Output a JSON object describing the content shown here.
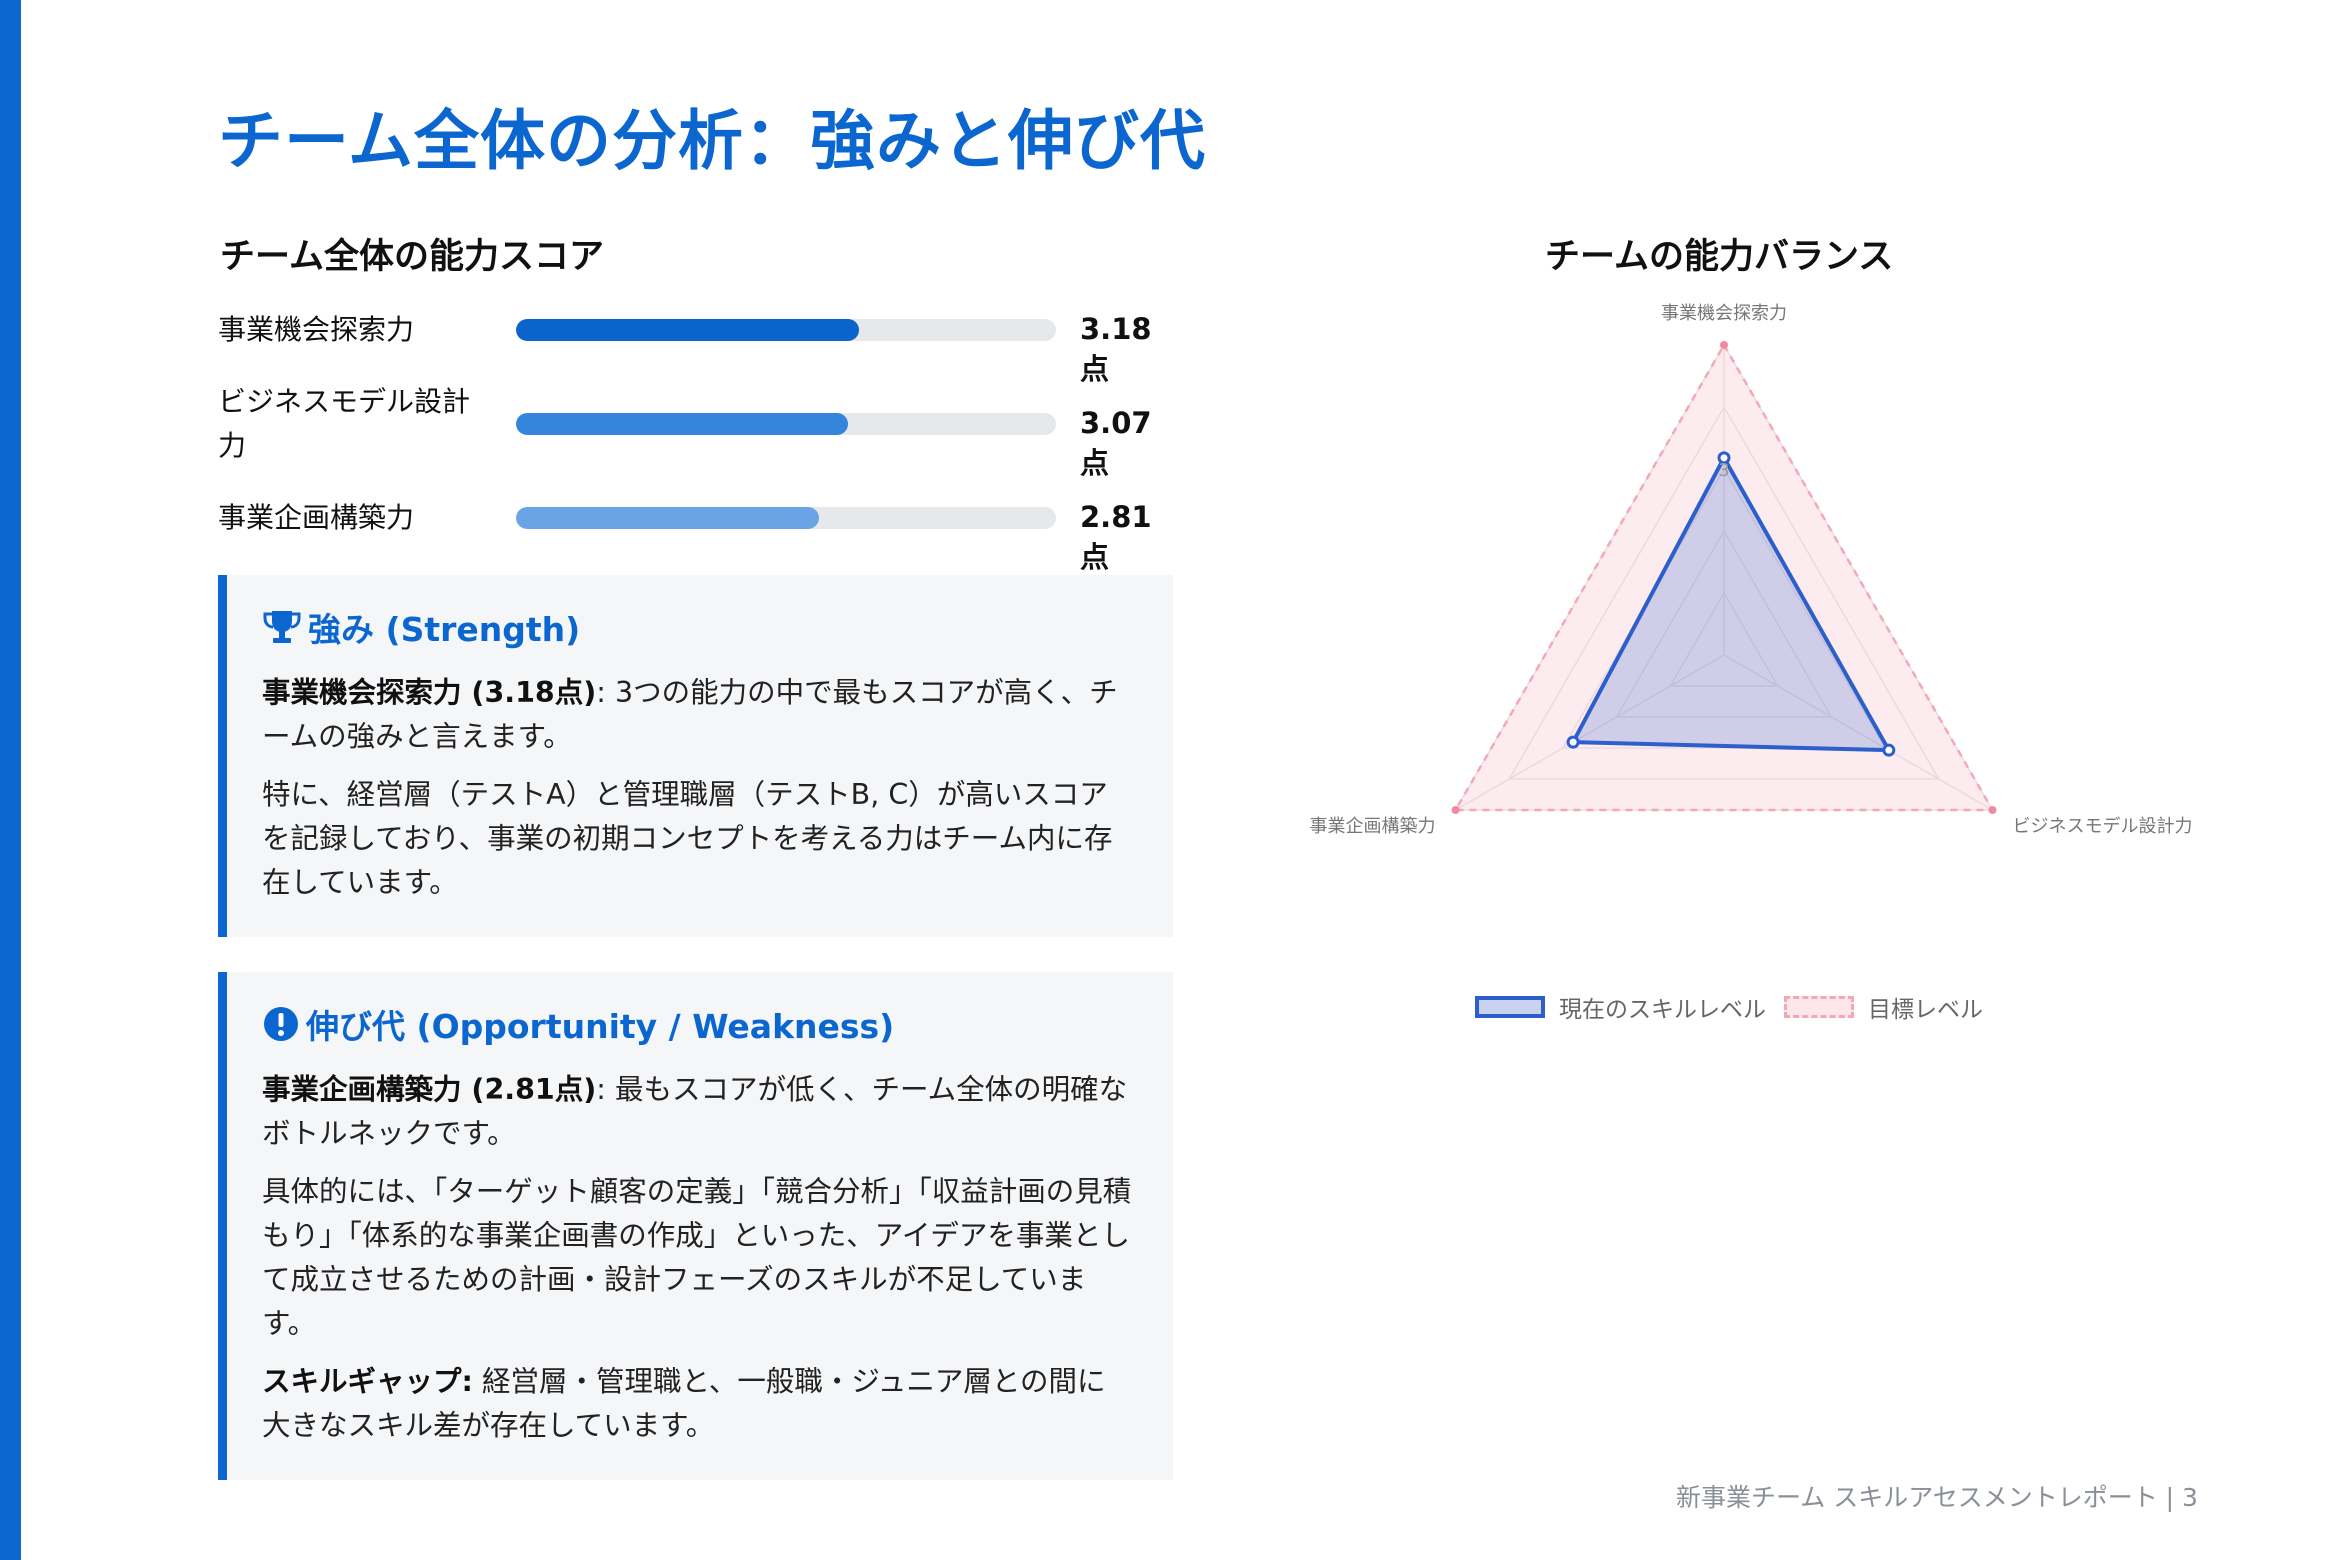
{
  "page_title": "チーム全体の分析：強みと伸び代",
  "scores_section": {
    "title": "チーム全体の能力スコア",
    "items": [
      {
        "label": "事業機会探索力",
        "value_text": "3.18点",
        "score": 3.18,
        "fill_fraction": 0.636,
        "color": "#0b63cc"
      },
      {
        "label": "ビジネスモデル設計力",
        "value_text": "3.07点",
        "score": 3.07,
        "fill_fraction": 0.614,
        "color": "#3585dc"
      },
      {
        "label": "事業企画構築力",
        "value_text": "2.81点",
        "score": 2.81,
        "fill_fraction": 0.562,
        "color": "#6aa4e6"
      }
    ]
  },
  "strength_card": {
    "icon": "trophy-icon",
    "title": "強み (Strength)",
    "p1_bold": "事業機会探索力 (3.18点)",
    "p1_text": ": 3つの能力の中で最もスコアが高く、チームの強みと言えます。",
    "p2_text": "特に、経営層（テストA）と管理職層（テストB, C）が高いスコアを記録しており、事業の初期コンセプトを考える力はチーム内に存在しています。"
  },
  "weakness_card": {
    "icon": "exclamation-circle-icon",
    "title": "伸び代 (Opportunity / Weakness)",
    "p1_bold": "事業企画構築力 (2.81点)",
    "p1_text": ": 最もスコアが低く、チーム全体の明確なボトルネックです。",
    "p2_text": "具体的には、「ターゲット顧客の定義」「競合分析」「収益計画の見積もり」「体系的な事業企画書の作成」といった、アイデアを事業として成立させるための計画・設計フェーズのスキルが不足しています。",
    "p3_bold": "スキルギャップ:",
    "p3_text": " 経営層・管理職と、一般職・ジュニア層との間に大きなスキル差が存在しています。"
  },
  "radar_section": {
    "title": "チームの能力バランス"
  },
  "chart_data": {
    "type": "radar",
    "axes": [
      "事業機会探索力",
      "ビジネスモデル設計力",
      "事業企画構築力"
    ],
    "scale_max": 5,
    "tick_labels": [
      "3"
    ],
    "series": [
      {
        "name": "現在のスキルレベル",
        "values": [
          3.18,
          3.07,
          2.81
        ],
        "color": "#2c5fcb"
      },
      {
        "name": "目標レベル",
        "values": [
          5,
          5,
          5
        ],
        "color": "#f4a8b6",
        "dashed": true
      }
    ],
    "legend_position": "bottom"
  },
  "footer": "新事業チーム スキルアセスメントレポート | 3"
}
